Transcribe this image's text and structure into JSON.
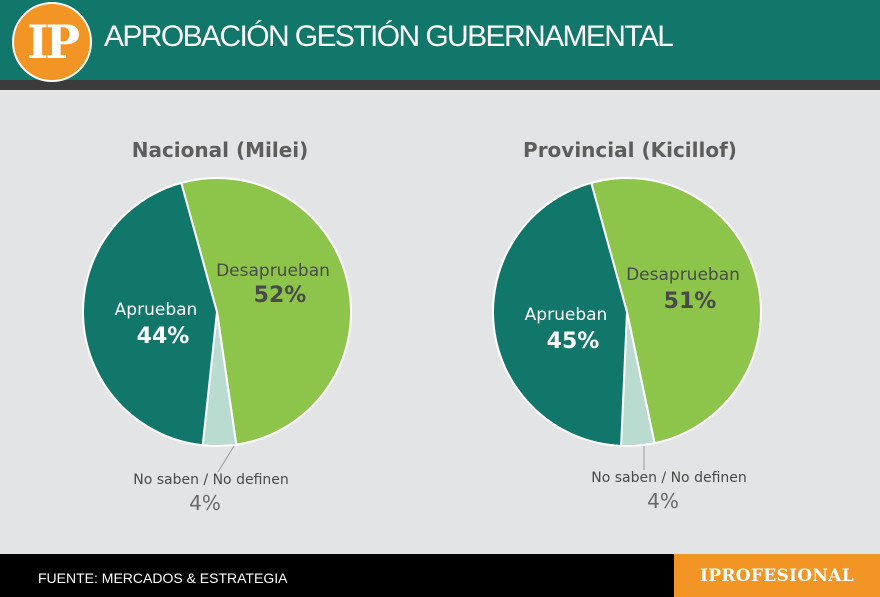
{
  "header": {
    "logo_text": "IP",
    "title": "APROBACIÓN GESTIÓN GUBERNAMENTAL"
  },
  "colors": {
    "header_bg": "#11776b",
    "aprueban": "#11776b",
    "desaprueban": "#8dc54b",
    "no_saben": "#b9dbd0",
    "accent": "#f39524"
  },
  "chart_data": [
    {
      "type": "pie",
      "title": "Nacional (Milei)",
      "slices": [
        {
          "label": "Desaprueban",
          "value": 52,
          "value_label": "52%"
        },
        {
          "label": "No saben / No definen",
          "value": 4,
          "value_label": "4%"
        },
        {
          "label": "Aprueban",
          "value": 44,
          "value_label": "44%"
        }
      ]
    },
    {
      "type": "pie",
      "title": "Provincial (Kicillof)",
      "slices": [
        {
          "label": "Desaprueban",
          "value": 51,
          "value_label": "51%"
        },
        {
          "label": "No saben / No definen",
          "value": 4,
          "value_label": "4%"
        },
        {
          "label": "Aprueban",
          "value": 45,
          "value_label": "45%"
        }
      ]
    }
  ],
  "footer": {
    "source": "FUENTE: MERCADOS & ESTRATEGIA",
    "brand": "IPROFESIONAL"
  }
}
